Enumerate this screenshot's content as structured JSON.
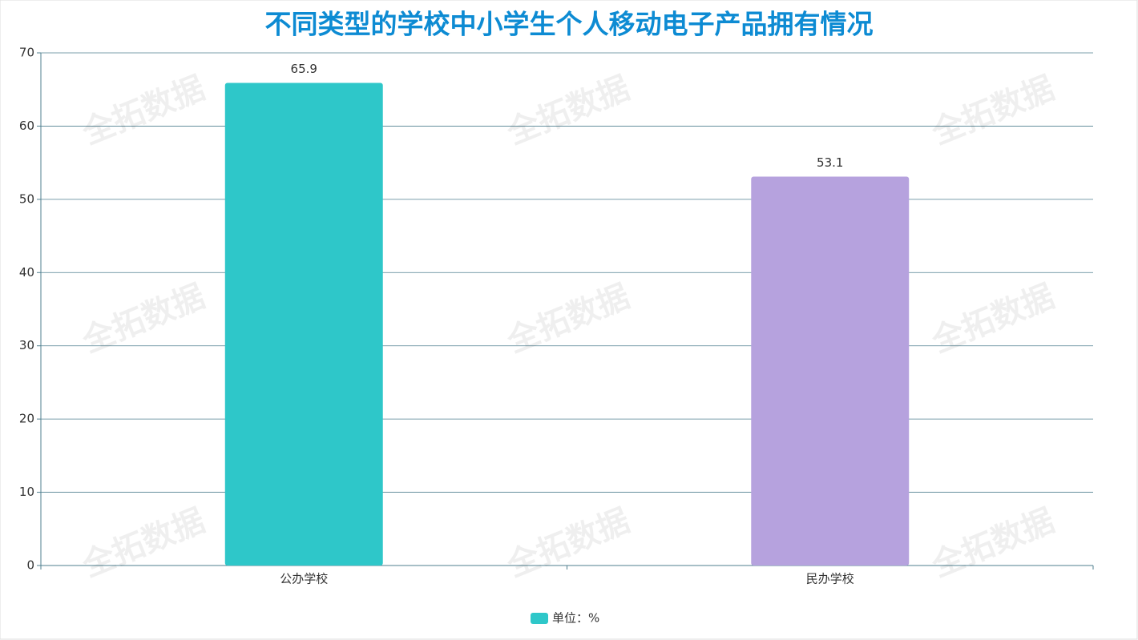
{
  "chart_data": {
    "type": "bar",
    "title": "不同类型的学校中小学生个人移动电子产品拥有情况",
    "categories": [
      "公办学校",
      "民办学校"
    ],
    "series": [
      {
        "name": "单位：%",
        "color": "#2ec7c9",
        "values": [
          65.9,
          53.1
        ]
      }
    ],
    "bar_colors": [
      "#2ec7c9",
      "#b6a2de"
    ],
    "ylim": [
      0,
      70
    ],
    "yticks": [
      0,
      10,
      20,
      30,
      40,
      50,
      60,
      70
    ],
    "grid": true,
    "legend": "bottom",
    "watermark": "全拓数据"
  }
}
